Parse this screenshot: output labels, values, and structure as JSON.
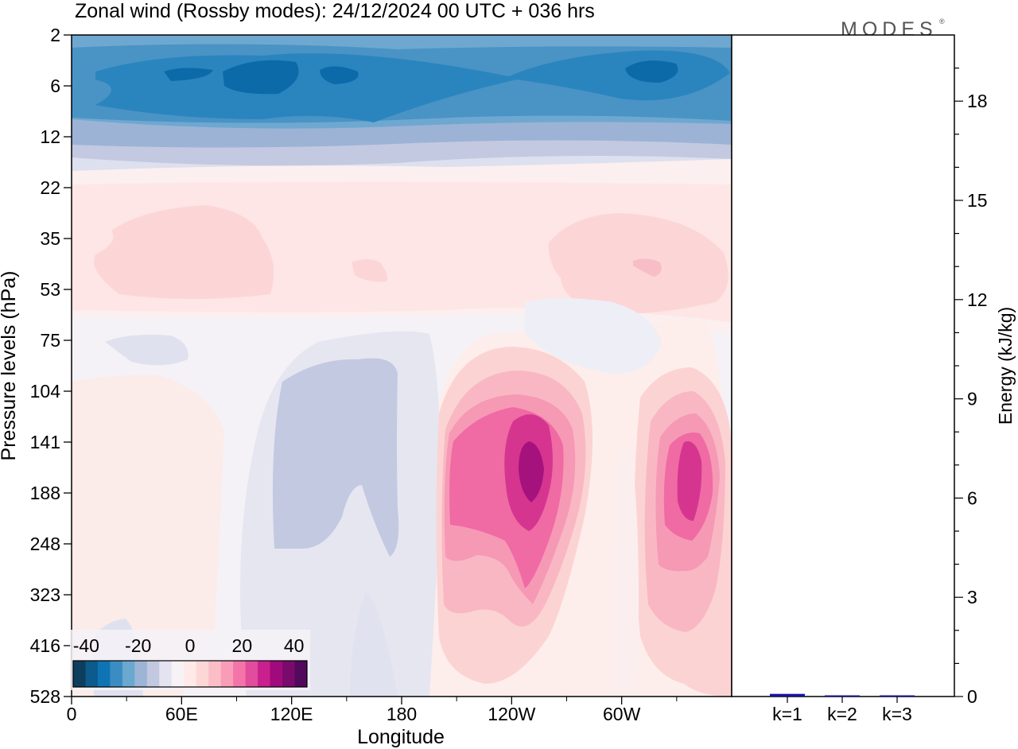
{
  "title": "Zonal wind (Rossby modes):  24/12/2024  00 UTC  + 036 hrs",
  "brand": "MODES",
  "chart_data": [
    {
      "type": "heatmap",
      "xlabel": "Longitude",
      "ylabel": "Pressure levels (hPa)",
      "x_tick_labels": [
        "0",
        "60E",
        "120E",
        "180",
        "120W",
        "60W"
      ],
      "y_tick_labels": [
        "2",
        "6",
        "12",
        "22",
        "35",
        "53",
        "75",
        "104",
        "141",
        "188",
        "248",
        "323",
        "416",
        "528"
      ],
      "colorbar": {
        "tick_labels": [
          "-40",
          "-20",
          "0",
          "20",
          "40"
        ],
        "range": [
          -45,
          45
        ],
        "step": 5,
        "colors": [
          "#0e3e5e",
          "#0d5a8c",
          "#0f74b4",
          "#3a8cc2",
          "#6aa8d0",
          "#9cb4d6",
          "#c2c8e0",
          "#e4e4f0",
          "#f7f2f6",
          "#ffeae7",
          "#fdd7d6",
          "#fbbec7",
          "#f89cb8",
          "#f274a8",
          "#e24c9c",
          "#c8208c",
          "#a10a7c",
          "#7a0a6c",
          "#520a5c"
        ]
      },
      "features": [
        {
          "name": "easterly jet",
          "levels_hPa": [
            2,
            16
          ],
          "longitudes": "all",
          "min_value": -40
        },
        {
          "name": "westerly max",
          "longitude": "~125W",
          "level_hPa": 150,
          "max_value": 40
        },
        {
          "name": "westerly max",
          "longitude": "~30W",
          "level_hPa": 150,
          "max_value": 35
        },
        {
          "name": "easterly region",
          "longitudes": "~140E-175E",
          "levels_hPa": [
            80,
            400
          ],
          "min_value": -10
        },
        {
          "name": "weak westerlies",
          "levels_hPa": [
            25,
            60
          ],
          "value": 5
        }
      ]
    },
    {
      "type": "bar",
      "ylabel": "Energy (kJ/kg)",
      "ylim": [
        0,
        20
      ],
      "y_tick_labels": [
        "0",
        "3",
        "6",
        "9",
        "12",
        "15",
        "18"
      ],
      "categories": [
        "k=1",
        "k=2",
        "k=3"
      ],
      "values": [
        0.08,
        0.03,
        0.02
      ],
      "bar_color": "#1515a0"
    }
  ]
}
